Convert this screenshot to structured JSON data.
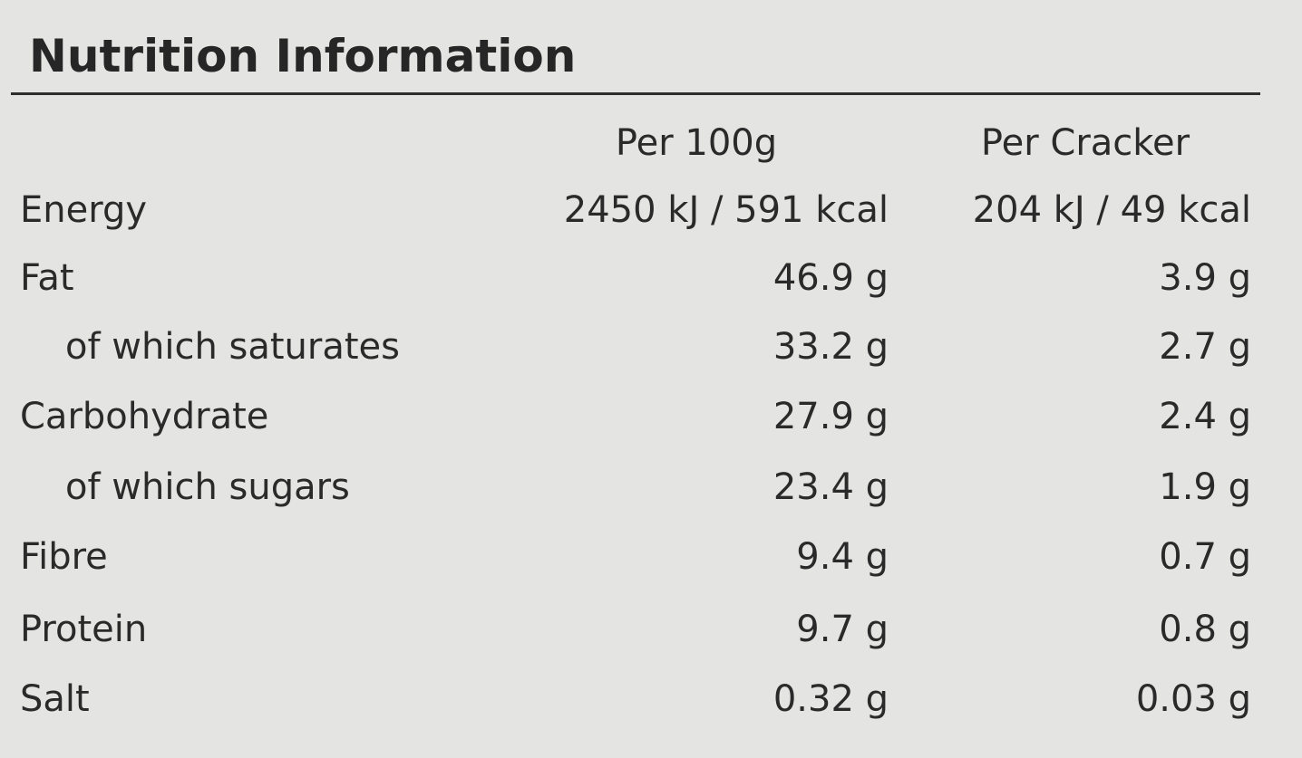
{
  "title": "Nutrition Information",
  "table": {
    "header": [
      "Per 100g",
      "Per Cracker"
    ],
    "rows": [
      [
        "Energy",
        "2450 kJ / 591 kcal",
        "204 kJ / 49 kcal"
      ],
      [
        "Fat",
        "46.9 g",
        "3.9 g"
      ],
      [
        "of which saturates",
        "33.2 g",
        "2.7 g"
      ],
      [
        "Carbohydrate",
        "27.9 g",
        "2.4 g"
      ],
      [
        "of which sugars",
        "23.4 g",
        "1.9 g"
      ],
      [
        "Fibre",
        "9.4 g",
        "0.7 g"
      ],
      [
        "Protein",
        "9.7 g",
        "0.8 g"
      ],
      [
        "Salt",
        "0.32 g",
        "0.03 g"
      ]
    ]
  }
}
